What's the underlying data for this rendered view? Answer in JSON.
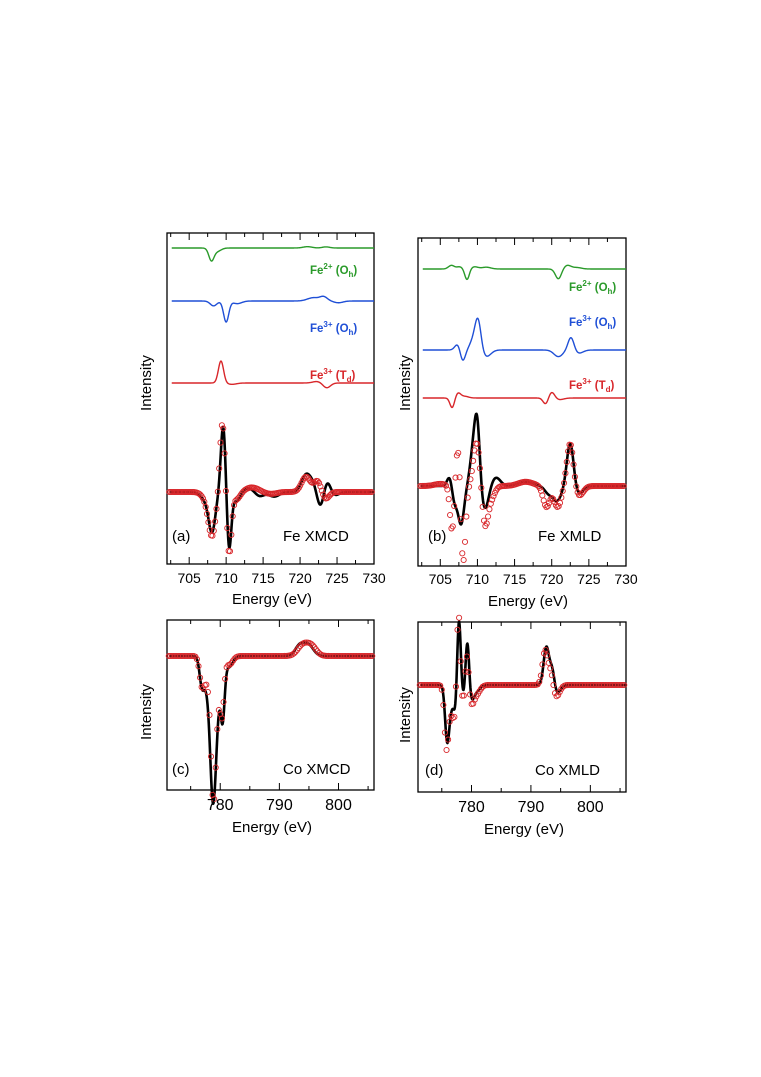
{
  "figure": {
    "panels_description": "Fe and Co L-edge XMCD and XMLD spectra with fits"
  },
  "chart_data": [
    {
      "type": "line",
      "panel": "a",
      "panel_label": "(a)",
      "caption": "Fe XMCD",
      "xlabel": "Energy (eV)",
      "ylabel": "Intensity",
      "xlim": [
        702,
        730
      ],
      "xticks": [
        705,
        710,
        715,
        720,
        725,
        730
      ],
      "xtick_labels": [
        "705",
        "710",
        "715",
        "720",
        "725",
        "730"
      ],
      "references": [
        {
          "label_base": "Fe",
          "label_sup": "2+",
          "label_site": "O",
          "label_sub": "h",
          "color": "#2a9a2a",
          "baseline": 0.0,
          "peaks": [
            [
              708.0,
              -0.55,
              0.35
            ],
            [
              708.8,
              -0.15,
              0.5
            ],
            [
              721.0,
              0.06,
              0.6
            ],
            [
              723.5,
              0.05,
              0.5
            ]
          ]
        },
        {
          "label_base": "Fe",
          "label_sup": "3+",
          "label_site": "O",
          "label_sub": "h",
          "color": "#1f4fd6",
          "baseline": 0.0,
          "peaks": [
            [
              708.3,
              -0.22,
              0.45
            ],
            [
              710.0,
              -0.95,
              0.35
            ],
            [
              711.5,
              -0.12,
              0.6
            ],
            [
              721.8,
              0.15,
              0.8
            ],
            [
              723.2,
              0.18,
              0.5
            ],
            [
              725.2,
              -0.08,
              0.6
            ]
          ]
        },
        {
          "label_base": "Fe",
          "label_sup": "3+",
          "label_site": "T",
          "label_sub": "d",
          "color": "#d8262a",
          "baseline": 0.0,
          "peaks": [
            [
              709.3,
              1.0,
              0.35
            ],
            [
              710.8,
              -0.06,
              0.6
            ],
            [
              722.3,
              0.07,
              0.6
            ],
            [
              723.6,
              -0.22,
              0.5
            ]
          ]
        }
      ],
      "experiment": {
        "name": "experiment",
        "peaks": [
          [
            707.2,
            -0.2,
            0.6
          ],
          [
            708.1,
            -1.0,
            0.45
          ],
          [
            709.6,
            1.75,
            0.32
          ],
          [
            710.4,
            -1.5,
            0.3
          ],
          [
            711.4,
            -0.25,
            0.5
          ],
          [
            713.0,
            0.1,
            0.8
          ],
          [
            714.5,
            -0.12,
            0.6
          ],
          [
            716.5,
            -0.12,
            0.7
          ],
          [
            720.8,
            0.45,
            0.6
          ],
          [
            721.8,
            0.2,
            0.5
          ],
          [
            722.8,
            -0.45,
            0.5
          ],
          [
            723.6,
            0.35,
            0.5
          ],
          [
            724.6,
            -0.1,
            0.6
          ]
        ]
      },
      "fit": {
        "name": "fit",
        "peaks": [
          [
            707.3,
            -0.15,
            0.6
          ],
          [
            708.1,
            -1.1,
            0.5
          ],
          [
            709.5,
            1.85,
            0.34
          ],
          [
            710.4,
            -1.65,
            0.32
          ],
          [
            711.4,
            -0.2,
            0.5
          ],
          [
            713.5,
            0.12,
            0.9
          ],
          [
            716.0,
            -0.05,
            0.8
          ],
          [
            720.8,
            0.4,
            0.6
          ],
          [
            722.4,
            0.3,
            0.5
          ],
          [
            723.4,
            -0.2,
            0.5
          ]
        ]
      }
    },
    {
      "type": "line",
      "panel": "b",
      "panel_label": "(b)",
      "caption": "Fe XMLD",
      "xlabel": "Energy (eV)",
      "ylabel": "Intensity",
      "xlim": [
        702,
        730
      ],
      "xticks": [
        705,
        710,
        715,
        720,
        725,
        730
      ],
      "xtick_labels": [
        "705",
        "710",
        "715",
        "720",
        "725",
        "730"
      ],
      "references": [
        {
          "label_base": "Fe",
          "label_sup": "2+",
          "label_site": "O",
          "label_sub": "h",
          "color": "#2a9a2a",
          "baseline": 0.0,
          "peaks": [
            [
              706.5,
              0.2,
              0.4
            ],
            [
              707.6,
              0.12,
              0.4
            ],
            [
              708.6,
              -0.6,
              0.3
            ],
            [
              709.6,
              0.12,
              0.5
            ],
            [
              711.2,
              0.1,
              0.6
            ],
            [
              720.9,
              -0.55,
              0.4
            ],
            [
              722.1,
              0.2,
              0.5
            ],
            [
              723.4,
              0.08,
              0.6
            ]
          ]
        },
        {
          "label_base": "Fe",
          "label_sup": "3+",
          "label_site": "O",
          "label_sub": "h",
          "color": "#1f4fd6",
          "baseline": 0.0,
          "peaks": [
            [
              707.4,
              0.3,
              0.4
            ],
            [
              708.0,
              -0.55,
              0.35
            ],
            [
              709.5,
              0.45,
              0.5
            ],
            [
              710.1,
              1.25,
              0.4
            ],
            [
              711.2,
              -0.3,
              0.6
            ],
            [
              720.9,
              -0.3,
              0.6
            ],
            [
              722.6,
              0.6,
              0.4
            ],
            [
              723.6,
              -0.15,
              0.6
            ]
          ]
        },
        {
          "label_base": "Fe",
          "label_sup": "3+",
          "label_site": "T",
          "label_sub": "d",
          "color": "#d8262a",
          "baseline": 0.0,
          "peaks": [
            [
              706.6,
              -0.7,
              0.3
            ],
            [
              707.4,
              0.35,
              0.35
            ],
            [
              708.3,
              0.12,
              0.5
            ],
            [
              719.2,
              -0.45,
              0.35
            ],
            [
              720.0,
              0.45,
              0.4
            ],
            [
              721.0,
              -0.12,
              0.6
            ]
          ]
        }
      ],
      "experiment": {
        "name": "experiment",
        "peaks": [
          [
            706.3,
            0.25,
            0.35
          ],
          [
            706.9,
            -0.4,
            0.35
          ],
          [
            707.8,
            -0.9,
            0.4
          ],
          [
            709.5,
            0.9,
            0.45
          ],
          [
            710.0,
            1.2,
            0.35
          ],
          [
            711.0,
            -0.55,
            0.5
          ],
          [
            712.5,
            0.2,
            0.6
          ],
          [
            716.5,
            0.1,
            1.0
          ],
          [
            719.5,
            -0.15,
            0.5
          ],
          [
            720.7,
            -0.35,
            0.6
          ],
          [
            722.5,
            1.05,
            0.45
          ],
          [
            723.6,
            -0.2,
            0.6
          ]
        ]
      },
      "fit": {
        "name": "fit",
        "peaks": [
          [
            705.0,
            0.05,
            0.8
          ],
          [
            706.6,
            -1.1,
            0.3
          ],
          [
            707.5,
            1.4,
            0.35
          ],
          [
            708.0,
            -2.2,
            0.35
          ],
          [
            709.9,
            1.05,
            0.45
          ],
          [
            711.0,
            -0.9,
            0.4
          ],
          [
            711.8,
            -0.3,
            0.5
          ],
          [
            716.5,
            0.1,
            1.0
          ],
          [
            719.3,
            -0.5,
            0.45
          ],
          [
            720.8,
            -0.5,
            0.5
          ],
          [
            722.5,
            1.05,
            0.45
          ],
          [
            723.6,
            -0.25,
            0.6
          ]
        ]
      }
    },
    {
      "type": "line",
      "panel": "c",
      "panel_label": "(c)",
      "caption": "Co XMCD",
      "xlabel": "Energy (eV)",
      "ylabel": "Intensity",
      "xlim": [
        771,
        806
      ],
      "xticks": [
        780,
        790,
        800
      ],
      "xtick_labels": [
        "780",
        "790",
        "800"
      ],
      "experiment": {
        "name": "experiment",
        "peaks": [
          [
            776.9,
            -0.25,
            0.4
          ],
          [
            777.8,
            -0.25,
            0.5
          ],
          [
            778.7,
            -1.0,
            0.45
          ],
          [
            779.3,
            -0.55,
            0.5
          ],
          [
            780.4,
            -0.55,
            0.35
          ],
          [
            781.5,
            -0.1,
            0.6
          ],
          [
            793.5,
            0.1,
            0.8
          ],
          [
            795.0,
            0.09,
            0.8
          ]
        ]
      },
      "fit": {
        "name": "fit",
        "peaks": [
          [
            776.9,
            -0.25,
            0.4
          ],
          [
            777.8,
            -0.2,
            0.5
          ],
          [
            778.8,
            -1.05,
            0.42
          ],
          [
            779.3,
            -0.4,
            0.5
          ],
          [
            780.3,
            -0.5,
            0.35
          ],
          [
            781.5,
            -0.08,
            0.6
          ],
          [
            794.0,
            0.1,
            0.9
          ],
          [
            795.5,
            0.08,
            0.8
          ]
        ]
      }
    },
    {
      "type": "line",
      "panel": "d",
      "panel_label": "(d)",
      "caption": "Co XMLD",
      "xlabel": "Energy (eV)",
      "ylabel": "Intensity",
      "xlim": [
        771,
        806
      ],
      "xticks": [
        780,
        790,
        800
      ],
      "xtick_labels": [
        "780",
        "790",
        "800"
      ],
      "experiment": {
        "name": "experiment",
        "peaks": [
          [
            775.9,
            -0.85,
            0.35
          ],
          [
            776.6,
            -0.3,
            0.4
          ],
          [
            777.3,
            -0.35,
            0.3
          ],
          [
            777.9,
            1.1,
            0.3
          ],
          [
            778.6,
            -0.2,
            0.4
          ],
          [
            779.3,
            0.75,
            0.3
          ],
          [
            780.0,
            -0.2,
            0.4
          ],
          [
            780.8,
            -0.1,
            0.6
          ],
          [
            792.6,
            0.6,
            0.45
          ],
          [
            793.6,
            0.3,
            0.4
          ],
          [
            794.3,
            -0.15,
            0.6
          ]
        ]
      },
      "fit": {
        "name": "fit",
        "peaks": [
          [
            775.8,
            -1.0,
            0.35
          ],
          [
            776.7,
            -0.4,
            0.4
          ],
          [
            777.3,
            -0.45,
            0.3
          ],
          [
            777.8,
            1.3,
            0.3
          ],
          [
            778.6,
            -0.35,
            0.4
          ],
          [
            779.2,
            0.6,
            0.3
          ],
          [
            780.0,
            -0.25,
            0.4
          ],
          [
            780.8,
            -0.15,
            0.6
          ],
          [
            792.4,
            0.55,
            0.45
          ],
          [
            793.4,
            0.25,
            0.4
          ],
          [
            794.2,
            -0.2,
            0.6
          ]
        ]
      }
    }
  ]
}
